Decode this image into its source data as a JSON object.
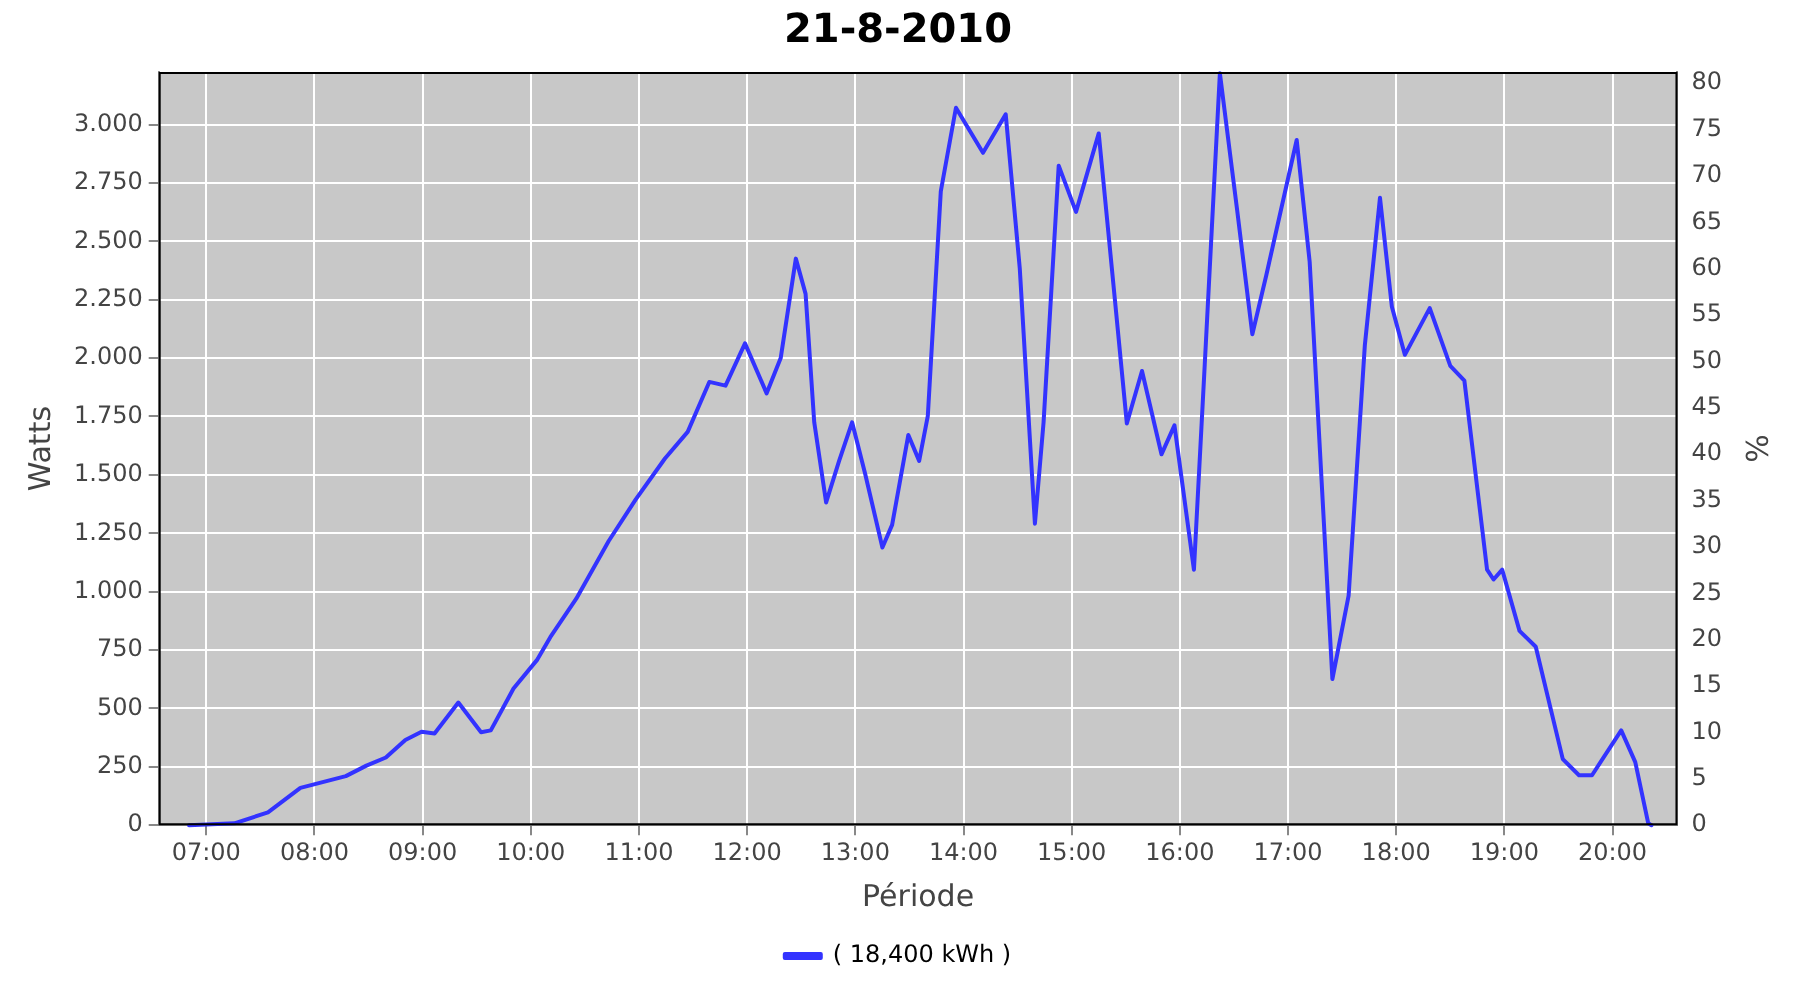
{
  "chart_data": {
    "type": "line",
    "title": "21-8-2010",
    "xlabel": "Période",
    "ylabel": "Watts",
    "y2label": "%",
    "legend": "bottom",
    "grid": true,
    "marker": "none",
    "line_style": "solid",
    "xlim": [
      6.56,
      20.6
    ],
    "xticks": [
      {
        "value": 7,
        "label": "07:00"
      },
      {
        "value": 8,
        "label": "08:00"
      },
      {
        "value": 9,
        "label": "09:00"
      },
      {
        "value": 10,
        "label": "10:00"
      },
      {
        "value": 11,
        "label": "11:00"
      },
      {
        "value": 12,
        "label": "12:00"
      },
      {
        "value": 13,
        "label": "13:00"
      },
      {
        "value": 14,
        "label": "14:00"
      },
      {
        "value": 15,
        "label": "15:00"
      },
      {
        "value": 16,
        "label": "16:00"
      },
      {
        "value": 17,
        "label": "17:00"
      },
      {
        "value": 18,
        "label": "18:00"
      },
      {
        "value": 19,
        "label": "19:00"
      },
      {
        "value": 20,
        "label": "20:00"
      }
    ],
    "ylim": [
      0,
      3225
    ],
    "yticks": [
      0,
      250,
      500,
      750,
      {
        "value": 1000,
        "label": "1.000"
      },
      {
        "value": 1250,
        "label": "1.250"
      },
      {
        "value": 1500,
        "label": "1.500"
      },
      {
        "value": 1750,
        "label": "1.750"
      },
      {
        "value": 2000,
        "label": "2.000"
      },
      {
        "value": 2250,
        "label": "2.250"
      },
      {
        "value": 2500,
        "label": "2.500"
      },
      {
        "value": 2750,
        "label": "2.750"
      },
      {
        "value": 3000,
        "label": "3.000"
      }
    ],
    "y2lim": [
      0,
      81.2
    ],
    "y2ticks": [
      0,
      5,
      10,
      15,
      20,
      25,
      30,
      35,
      40,
      45,
      50,
      55,
      60,
      65,
      70,
      75,
      80
    ],
    "series": [
      {
        "name": "( 18,400 kWh )",
        "color": "#3333ff",
        "x": [
          6.84,
          7.26,
          7.57,
          7.87,
          8.29,
          8.48,
          8.66,
          8.84,
          8.99,
          9.11,
          9.33,
          9.54,
          9.63,
          9.84,
          10.06,
          10.18,
          10.42,
          10.72,
          10.97,
          11.24,
          11.45,
          11.65,
          11.8,
          11.98,
          12.18,
          12.31,
          12.45,
          12.54,
          12.62,
          12.73,
          12.85,
          12.97,
          13.09,
          13.25,
          13.34,
          13.49,
          13.59,
          13.67,
          13.79,
          13.93,
          14.18,
          14.39,
          14.52,
          14.66,
          14.74,
          14.88,
          15.04,
          15.25,
          15.4,
          15.51,
          15.65,
          15.83,
          15.95,
          16.13,
          16.23,
          16.37,
          16.53,
          16.67,
          16.8,
          17.08,
          17.2,
          17.41,
          17.56,
          17.71,
          17.85,
          17.96,
          18.08,
          18.31,
          18.5,
          18.63,
          18.84,
          18.9,
          18.98,
          19.14,
          19.29,
          19.54,
          19.69,
          19.81,
          20.08,
          20.21,
          20.33,
          20.36
        ],
        "values": [
          0,
          8,
          55,
          160,
          210,
          255,
          290,
          365,
          400,
          393,
          525,
          398,
          406,
          585,
          709,
          805,
          970,
          1217,
          1395,
          1570,
          1684,
          1898,
          1882,
          2063,
          1849,
          2000,
          2426,
          2275,
          1725,
          1382,
          1560,
          1725,
          1506,
          1189,
          1286,
          1671,
          1560,
          1753,
          2714,
          3072,
          2879,
          3044,
          2384,
          1291,
          1725,
          2824,
          2626,
          2962,
          2247,
          1720,
          1945,
          1588,
          1712,
          1094,
          1972,
          3220,
          2632,
          2102,
          2357,
          2934,
          2412,
          626,
          983,
          2055,
          2687,
          2220,
          2014,
          2214,
          1967,
          1904,
          1094,
          1052,
          1094,
          832,
          764,
          283,
          214,
          214,
          406,
          270,
          8,
          0
        ]
      }
    ]
  }
}
